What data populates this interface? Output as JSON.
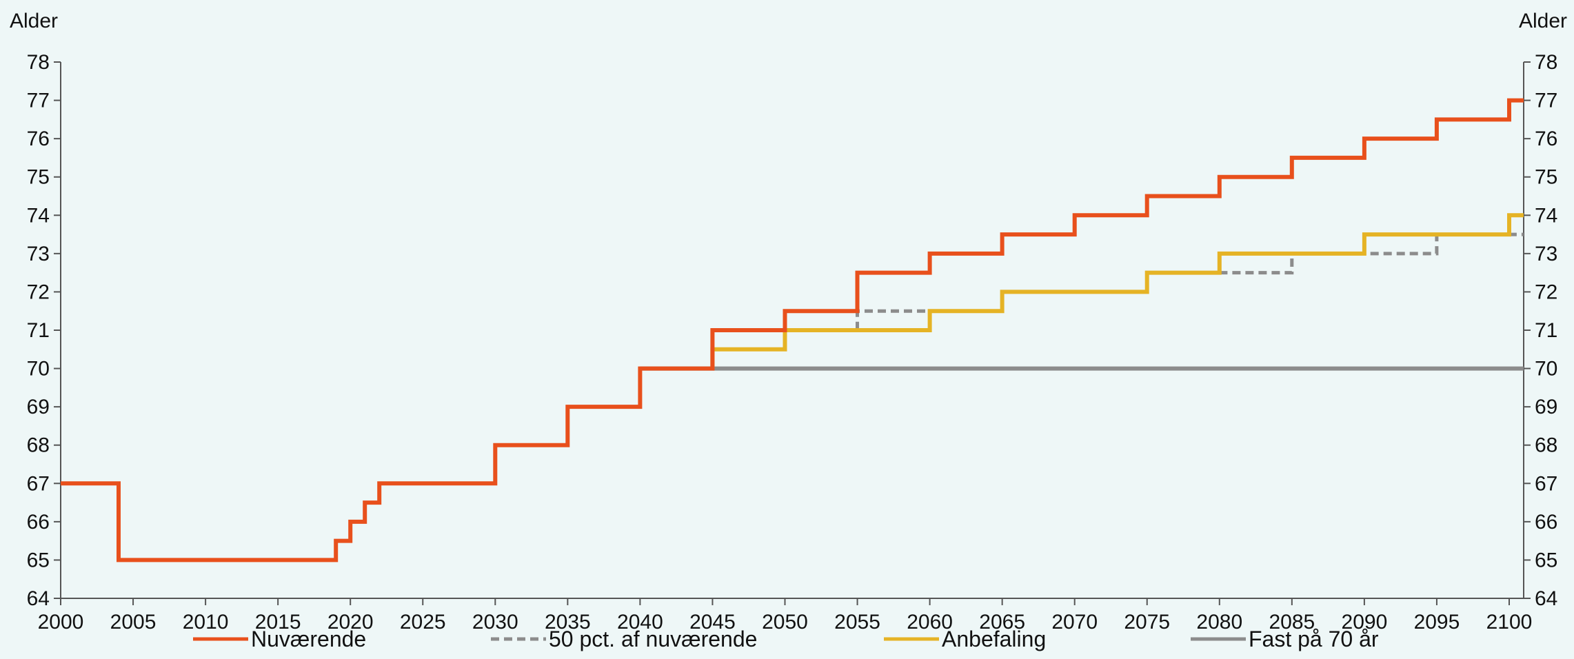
{
  "chart_data": {
    "type": "line",
    "step": true,
    "x_range": [
      2000,
      2101
    ],
    "ylim": [
      64,
      78
    ],
    "grid": false,
    "legend_position": "bottom",
    "y_left_label": "Alder",
    "y_right_label": "Alder",
    "x_ticks": [
      2000,
      2005,
      2010,
      2015,
      2020,
      2025,
      2030,
      2035,
      2040,
      2045,
      2050,
      2055,
      2060,
      2065,
      2070,
      2075,
      2080,
      2085,
      2090,
      2095,
      2100
    ],
    "y_ticks": [
      64,
      65,
      66,
      67,
      68,
      69,
      70,
      71,
      72,
      73,
      74,
      75,
      76,
      77,
      78
    ],
    "series": [
      {
        "name": "Fast på 70 år",
        "color": "#8c8c8c",
        "style": "solid",
        "points": [
          [
            2040,
            70
          ],
          [
            2101,
            70
          ]
        ]
      },
      {
        "name": "50 pct. af nuværende",
        "color": "#8c8c8c",
        "style": "dashed",
        "points": [
          [
            2045,
            70
          ],
          [
            2045,
            70.5
          ],
          [
            2050,
            70.5
          ],
          [
            2050,
            71
          ],
          [
            2055,
            71
          ],
          [
            2055,
            71.5
          ],
          [
            2060,
            71.5
          ],
          [
            2060,
            71.5
          ],
          [
            2065,
            71.5
          ],
          [
            2065,
            72
          ],
          [
            2075,
            72
          ],
          [
            2075,
            72.5
          ],
          [
            2080,
            72.5
          ],
          [
            2085,
            72.5
          ],
          [
            2085,
            73
          ],
          [
            2095,
            73
          ],
          [
            2095,
            73.5
          ],
          [
            2101,
            73.5
          ]
        ]
      },
      {
        "name": "Anbefaling",
        "color": "#e5b325",
        "style": "solid",
        "points": [
          [
            2045,
            70
          ],
          [
            2045,
            70.5
          ],
          [
            2050,
            70.5
          ],
          [
            2050,
            71
          ],
          [
            2060,
            71
          ],
          [
            2060,
            71.5
          ],
          [
            2065,
            71.5
          ],
          [
            2065,
            72
          ],
          [
            2075,
            72
          ],
          [
            2075,
            72.5
          ],
          [
            2080,
            72.5
          ],
          [
            2080,
            73
          ],
          [
            2090,
            73
          ],
          [
            2090,
            73.5
          ],
          [
            2100,
            73.5
          ],
          [
            2100,
            74
          ],
          [
            2101,
            74
          ]
        ]
      },
      {
        "name": "Nuværende",
        "color": "#e8501c",
        "style": "solid",
        "points": [
          [
            2000,
            67
          ],
          [
            2004,
            67
          ],
          [
            2004,
            65
          ],
          [
            2019,
            65
          ],
          [
            2019,
            65.5
          ],
          [
            2020,
            65.5
          ],
          [
            2020,
            66
          ],
          [
            2021,
            66
          ],
          [
            2021,
            66.5
          ],
          [
            2022,
            66.5
          ],
          [
            2022,
            67
          ],
          [
            2030,
            67
          ],
          [
            2030,
            68
          ],
          [
            2035,
            68
          ],
          [
            2035,
            69
          ],
          [
            2040,
            69
          ],
          [
            2040,
            70
          ],
          [
            2045,
            70
          ],
          [
            2045,
            71
          ],
          [
            2050,
            71
          ],
          [
            2050,
            71.5
          ],
          [
            2055,
            71.5
          ],
          [
            2055,
            72.5
          ],
          [
            2060,
            72.5
          ],
          [
            2060,
            73
          ],
          [
            2065,
            73
          ],
          [
            2065,
            73.5
          ],
          [
            2070,
            73.5
          ],
          [
            2070,
            74
          ],
          [
            2075,
            74
          ],
          [
            2075,
            74.5
          ],
          [
            2080,
            74.5
          ],
          [
            2080,
            75
          ],
          [
            2085,
            75
          ],
          [
            2085,
            75.5
          ],
          [
            2090,
            75.5
          ],
          [
            2090,
            76
          ],
          [
            2095,
            76
          ],
          [
            2095,
            76.5
          ],
          [
            2100,
            76.5
          ],
          [
            2100,
            77
          ],
          [
            2101,
            77
          ]
        ]
      }
    ],
    "legend": [
      {
        "name": "Nuværende",
        "color": "#e8501c",
        "style": "solid"
      },
      {
        "name": "50 pct. af nuværende",
        "color": "#8c8c8c",
        "style": "dashed"
      },
      {
        "name": "Anbefaling",
        "color": "#e5b325",
        "style": "solid"
      },
      {
        "name": "Fast på 70 år",
        "color": "#8c8c8c",
        "style": "solid"
      }
    ]
  }
}
